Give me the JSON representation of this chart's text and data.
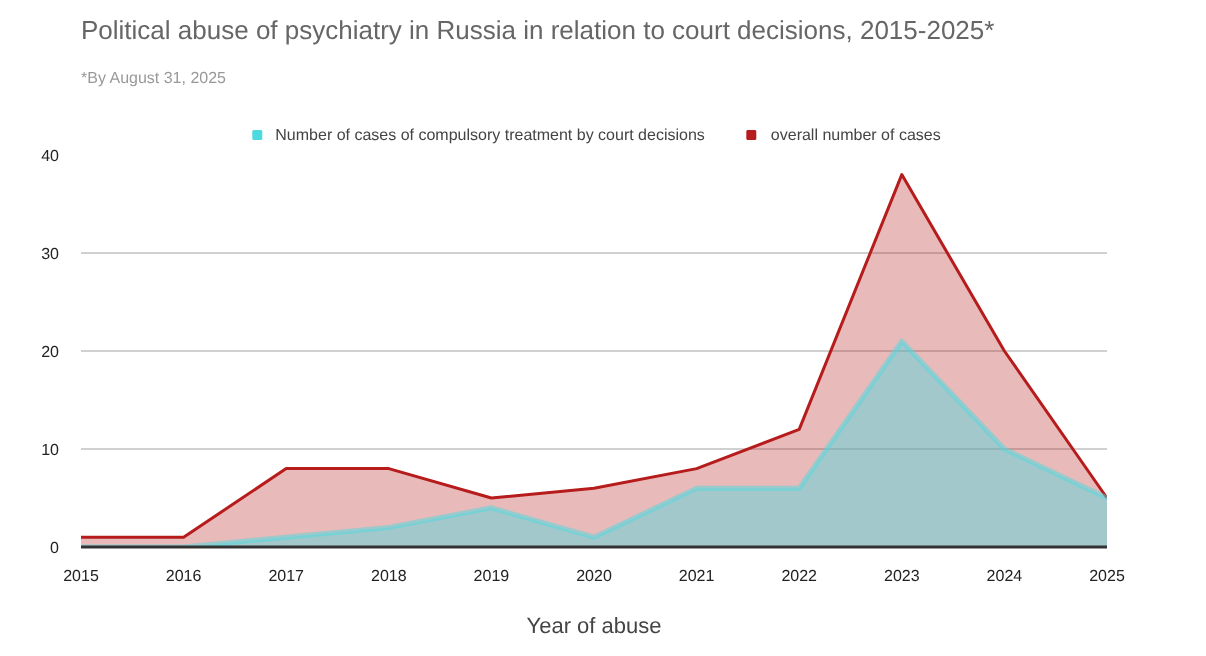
{
  "chart_data": {
    "type": "area",
    "title": "Political abuse of psychiatry in Russia in relation to court decisions, 2015-2025*",
    "subtitle": "*By August 31, 2025",
    "xlabel": "Year of abuse",
    "x": [
      2015,
      2016,
      2017,
      2018,
      2019,
      2020,
      2021,
      2022,
      2023,
      2024,
      2025
    ],
    "series": [
      {
        "name": "overall number of cases",
        "color": "#b71c1c",
        "values": [
          1,
          1,
          8,
          8,
          5,
          6,
          8,
          12,
          38,
          20,
          5
        ]
      },
      {
        "name": "Number of cases of compulsory treatment by court decisions",
        "color": "#4dd9e0",
        "values": [
          0,
          0,
          1,
          2,
          4,
          1,
          6,
          6,
          21,
          10,
          5
        ]
      }
    ],
    "xlim": [
      2015,
      2025
    ],
    "xticks": [
      2015,
      2016,
      2017,
      2018,
      2019,
      2020,
      2021,
      2022,
      2023,
      2024,
      2025
    ],
    "ylim": [
      0,
      40
    ],
    "yticks": [
      0,
      10,
      20,
      30,
      40
    ],
    "grid": "y",
    "legend": "top",
    "marker": "none"
  }
}
